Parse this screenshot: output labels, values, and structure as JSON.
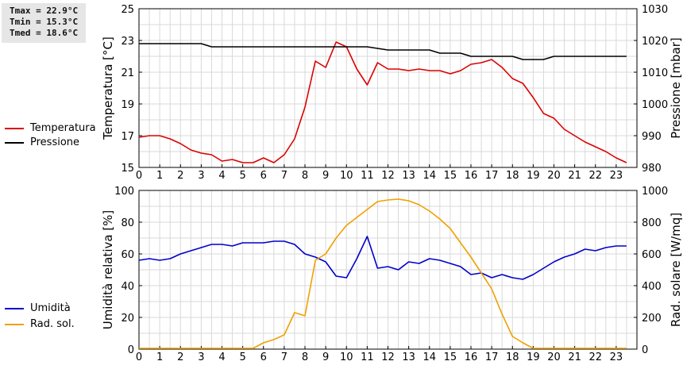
{
  "stats": {
    "tmax": "Tmax = 22.9°C",
    "tmin": "Tmin = 15.3°C",
    "tmed": "Tmed = 18.6°C"
  },
  "chart_data": [
    {
      "type": "line",
      "x_ticks": [
        0,
        1,
        2,
        3,
        4,
        5,
        6,
        7,
        8,
        9,
        10,
        11,
        12,
        13,
        14,
        15,
        16,
        17,
        18,
        19,
        20,
        21,
        22,
        23
      ],
      "ylabel": "Temperatura [°C]",
      "ylabel_right": "Pressione [mbar]",
      "ylim": [
        15,
        25
      ],
      "y_ticks": [
        15,
        17,
        19,
        21,
        23,
        25
      ],
      "ylim_right": [
        980,
        1030
      ],
      "y_ticks_right": [
        980,
        990,
        1000,
        1010,
        1020,
        1030
      ],
      "grid": true,
      "legend": "left",
      "series": [
        {
          "name": "Temperatura",
          "axis": "left",
          "color": "#dd0000",
          "points": [
            [
              0,
              16.9
            ],
            [
              0.5,
              17.0
            ],
            [
              1,
              17.0
            ],
            [
              1.5,
              16.8
            ],
            [
              2,
              16.5
            ],
            [
              2.5,
              16.1
            ],
            [
              3,
              15.9
            ],
            [
              3.5,
              15.8
            ],
            [
              4,
              15.4
            ],
            [
              4.5,
              15.5
            ],
            [
              5,
              15.3
            ],
            [
              5.5,
              15.3
            ],
            [
              6,
              15.6
            ],
            [
              6.5,
              15.3
            ],
            [
              7,
              15.8
            ],
            [
              7.5,
              16.8
            ],
            [
              8,
              18.8
            ],
            [
              8.5,
              21.7
            ],
            [
              9,
              21.3
            ],
            [
              9.5,
              22.9
            ],
            [
              10,
              22.6
            ],
            [
              10.5,
              21.2
            ],
            [
              11,
              20.2
            ],
            [
              11.5,
              21.6
            ],
            [
              12,
              21.2
            ],
            [
              12.5,
              21.2
            ],
            [
              13,
              21.1
            ],
            [
              13.5,
              21.2
            ],
            [
              14,
              21.1
            ],
            [
              14.5,
              21.1
            ],
            [
              15,
              20.9
            ],
            [
              15.5,
              21.1
            ],
            [
              16,
              21.5
            ],
            [
              16.5,
              21.6
            ],
            [
              17,
              21.8
            ],
            [
              17.5,
              21.3
            ],
            [
              18,
              20.6
            ],
            [
              18.5,
              20.3
            ],
            [
              19,
              19.4
            ],
            [
              19.5,
              18.4
            ],
            [
              20,
              18.1
            ],
            [
              20.5,
              17.4
            ],
            [
              21,
              17.0
            ],
            [
              21.5,
              16.6
            ],
            [
              22,
              16.3
            ],
            [
              22.5,
              16.0
            ],
            [
              23,
              15.6
            ],
            [
              23.5,
              15.3
            ]
          ]
        },
        {
          "name": "Pressione",
          "axis": "right",
          "color": "#000000",
          "points": [
            [
              0,
              1019
            ],
            [
              3,
              1019
            ],
            [
              3.5,
              1018
            ],
            [
              11,
              1018
            ],
            [
              12,
              1017
            ],
            [
              14,
              1017
            ],
            [
              14.5,
              1016
            ],
            [
              15.5,
              1016
            ],
            [
              16,
              1015
            ],
            [
              18,
              1015
            ],
            [
              18.5,
              1014
            ],
            [
              19.5,
              1014
            ],
            [
              20,
              1015
            ],
            [
              23.5,
              1015
            ]
          ]
        }
      ]
    },
    {
      "type": "line",
      "x_ticks": [
        0,
        1,
        2,
        3,
        4,
        5,
        6,
        7,
        8,
        9,
        10,
        11,
        12,
        13,
        14,
        15,
        16,
        17,
        18,
        19,
        20,
        21,
        22,
        23
      ],
      "ylabel": "Umidità relativa [%]",
      "ylabel_right": "Rad. solare [W/mq]",
      "ylim": [
        0,
        100
      ],
      "y_ticks": [
        0,
        20,
        40,
        60,
        80,
        100
      ],
      "ylim_right": [
        0,
        1000
      ],
      "y_ticks_right": [
        0,
        200,
        400,
        600,
        800,
        1000
      ],
      "grid": true,
      "legend": "left",
      "series": [
        {
          "name": "Umidità",
          "axis": "left",
          "color": "#0000cc",
          "points": [
            [
              0,
              56
            ],
            [
              0.5,
              57
            ],
            [
              1,
              56
            ],
            [
              1.5,
              57
            ],
            [
              2,
              60
            ],
            [
              2.5,
              62
            ],
            [
              3,
              64
            ],
            [
              3.5,
              66
            ],
            [
              4,
              66
            ],
            [
              4.5,
              65
            ],
            [
              5,
              67
            ],
            [
              5.5,
              67
            ],
            [
              6,
              67
            ],
            [
              6.5,
              68
            ],
            [
              7,
              68
            ],
            [
              7.5,
              66
            ],
            [
              8,
              60
            ],
            [
              8.5,
              58
            ],
            [
              9,
              55
            ],
            [
              9.5,
              46
            ],
            [
              10,
              45
            ],
            [
              10.5,
              57
            ],
            [
              11,
              71
            ],
            [
              11.5,
              51
            ],
            [
              12,
              52
            ],
            [
              12.5,
              50
            ],
            [
              13,
              55
            ],
            [
              13.5,
              54
            ],
            [
              14,
              57
            ],
            [
              14.5,
              56
            ],
            [
              15,
              54
            ],
            [
              15.5,
              52
            ],
            [
              16,
              47
            ],
            [
              16.5,
              48
            ],
            [
              17,
              45
            ],
            [
              17.5,
              47
            ],
            [
              18,
              45
            ],
            [
              18.5,
              44
            ],
            [
              19,
              47
            ],
            [
              19.5,
              51
            ],
            [
              20,
              55
            ],
            [
              20.5,
              58
            ],
            [
              21,
              60
            ],
            [
              21.5,
              63
            ],
            [
              22,
              62
            ],
            [
              22.5,
              64
            ],
            [
              23,
              65
            ],
            [
              23.5,
              65
            ]
          ]
        },
        {
          "name": "Rad. sol.",
          "axis": "right",
          "color": "#f0a000",
          "points": [
            [
              0,
              5
            ],
            [
              5.5,
              5
            ],
            [
              6,
              40
            ],
            [
              6.5,
              60
            ],
            [
              7,
              90
            ],
            [
              7.5,
              230
            ],
            [
              8,
              210
            ],
            [
              8.5,
              560
            ],
            [
              9,
              600
            ],
            [
              9.5,
              700
            ],
            [
              10,
              780
            ],
            [
              10.5,
              830
            ],
            [
              11,
              880
            ],
            [
              11.5,
              930
            ],
            [
              12,
              940
            ],
            [
              12.5,
              945
            ],
            [
              13,
              935
            ],
            [
              13.5,
              910
            ],
            [
              14,
              870
            ],
            [
              14.5,
              820
            ],
            [
              15,
              760
            ],
            [
              15.5,
              670
            ],
            [
              16,
              580
            ],
            [
              16.5,
              480
            ],
            [
              17,
              380
            ],
            [
              17.5,
              220
            ],
            [
              18,
              80
            ],
            [
              18.5,
              40
            ],
            [
              19,
              5
            ],
            [
              23.5,
              5
            ]
          ]
        }
      ]
    }
  ]
}
